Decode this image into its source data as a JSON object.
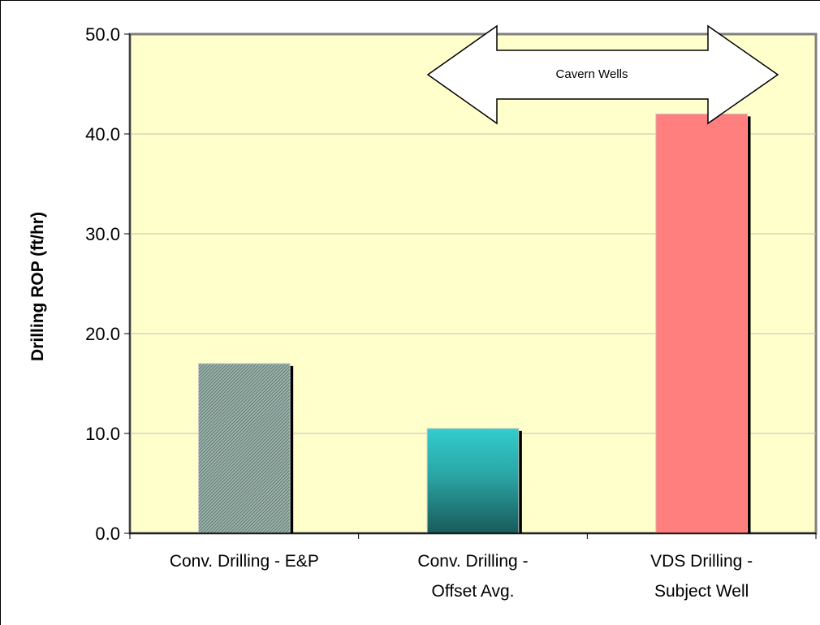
{
  "colors": {
    "plot_background": "#ffffcc",
    "plot_border": "#808080",
    "gridline": "#c0c0c0",
    "bar_shadow": "#000000"
  },
  "chart_data": {
    "type": "bar",
    "categories": [
      [
        "Conv. Drilling - E&P"
      ],
      [
        "Conv. Drilling -",
        "Offset Avg."
      ],
      [
        "VDS Drilling -",
        "Subject Well"
      ]
    ],
    "values": [
      17.0,
      10.5,
      42.0
    ],
    "bar_styles": [
      "hatched-gray-green",
      "teal-gradient",
      "salmon"
    ],
    "ylabel": "Drilling ROP (ft/hr)",
    "xlabel": "",
    "title": "",
    "ylim": [
      0,
      50
    ],
    "yticks": [
      "0.0",
      "10.0",
      "20.0",
      "30.0",
      "40.0",
      "50.0"
    ],
    "grid": true,
    "annotations": [
      {
        "type": "double-arrow",
        "text": "Cavern Wells",
        "spans_categories": [
          1,
          2
        ]
      }
    ]
  }
}
